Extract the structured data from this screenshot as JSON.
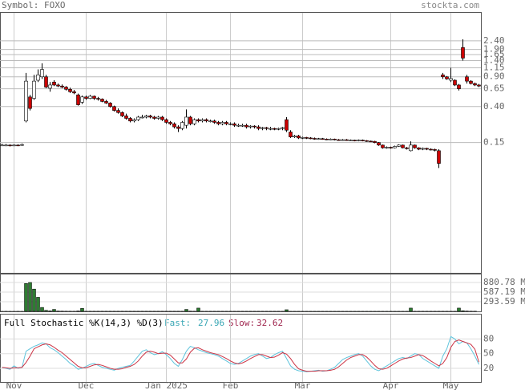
{
  "header": {
    "symbol": "Symbol: FOXO",
    "site": "stockta.com"
  },
  "chart_data": [
    {
      "type": "candlestick",
      "log_scale": true,
      "grid": true,
      "up_color": "#ffffff",
      "down_color": "#cc0000",
      "ylim": [
        0.0043,
        5.15
      ],
      "yticks": [
        {
          "value": 2.4,
          "label": "2.40"
        },
        {
          "value": 1.9,
          "label": "1.90"
        },
        {
          "value": 1.65,
          "label": "1.65"
        },
        {
          "value": 1.4,
          "label": "1.40"
        },
        {
          "value": 1.15,
          "label": "1.15"
        },
        {
          "value": 0.9,
          "label": "0.90"
        },
        {
          "value": 0.65,
          "label": "0.65"
        },
        {
          "value": 0.4,
          "label": "0.40"
        },
        {
          "value": 0.15,
          "label": "0.15"
        }
      ],
      "categories": [
        null,
        null,
        null,
        "Nov",
        null,
        null,
        null,
        null,
        null,
        null,
        null,
        null,
        null,
        null,
        null,
        null,
        null,
        null,
        null,
        null,
        null,
        "Dec",
        null,
        null,
        null,
        null,
        null,
        null,
        null,
        null,
        null,
        null,
        null,
        null,
        null,
        null,
        null,
        null,
        null,
        null,
        null,
        "Jan 2025",
        null,
        null,
        null,
        null,
        null,
        null,
        null,
        null,
        null,
        null,
        null,
        null,
        null,
        null,
        null,
        "Feb",
        null,
        null,
        null,
        null,
        null,
        null,
        null,
        null,
        null,
        null,
        null,
        null,
        null,
        null,
        null,
        null,
        null,
        "Mar",
        null,
        null,
        null,
        null,
        null,
        null,
        null,
        null,
        null,
        null,
        null,
        null,
        null,
        null,
        null,
        null,
        null,
        null,
        null,
        null,
        null,
        "Apr",
        null,
        null,
        null,
        null,
        null,
        null,
        null,
        null,
        null,
        null,
        null,
        null,
        null,
        null,
        "May",
        null,
        null,
        null,
        null,
        null,
        null,
        null
      ],
      "open": [
        0.14,
        0.14,
        0.14,
        0.138,
        0.14,
        0.139,
        0.27,
        0.52,
        0.5,
        0.82,
        0.9,
        0.9,
        0.66,
        0.78,
        0.72,
        0.7,
        0.68,
        0.64,
        0.6,
        0.55,
        0.45,
        0.52,
        0.5,
        0.53,
        0.5,
        0.49,
        0.46,
        0.44,
        0.4,
        0.36,
        0.34,
        0.31,
        0.29,
        0.27,
        0.28,
        0.3,
        0.3,
        0.31,
        0.3,
        0.29,
        0.3,
        0.28,
        0.26,
        0.25,
        0.23,
        0.22,
        0.24,
        0.3,
        0.25,
        0.28,
        0.27,
        0.28,
        0.27,
        0.27,
        0.26,
        0.25,
        0.26,
        0.25,
        0.25,
        0.24,
        0.24,
        0.24,
        0.23,
        0.235,
        0.23,
        0.22,
        0.225,
        0.22,
        0.22,
        0.215,
        0.22,
        0.28,
        0.2,
        0.175,
        0.18,
        0.17,
        0.172,
        0.17,
        0.168,
        0.165,
        0.167,
        0.165,
        0.163,
        0.165,
        0.162,
        0.16,
        0.162,
        0.16,
        0.16,
        0.158,
        0.16,
        0.158,
        0.156,
        0.155,
        0.15,
        0.14,
        0.13,
        0.132,
        0.13,
        0.135,
        0.14,
        0.13,
        0.12,
        0.14,
        0.13,
        0.125,
        0.128,
        0.125,
        0.124,
        0.12,
        0.95,
        0.9,
        0.82,
        0.82,
        0.72,
        2.0,
        0.9,
        0.8,
        0.75,
        0.72
      ],
      "high": [
        0.145,
        0.144,
        0.143,
        0.143,
        0.143,
        0.146,
        1.0,
        0.55,
        0.95,
        1.1,
        1.3,
        0.95,
        0.78,
        0.82,
        0.75,
        0.73,
        0.7,
        0.67,
        0.63,
        0.57,
        0.54,
        0.54,
        0.55,
        0.54,
        0.52,
        0.5,
        0.48,
        0.45,
        0.41,
        0.38,
        0.35,
        0.33,
        0.3,
        0.29,
        0.31,
        0.32,
        0.32,
        0.32,
        0.31,
        0.31,
        0.31,
        0.29,
        0.27,
        0.26,
        0.24,
        0.27,
        0.37,
        0.31,
        0.29,
        0.29,
        0.29,
        0.29,
        0.28,
        0.28,
        0.27,
        0.27,
        0.27,
        0.26,
        0.26,
        0.25,
        0.25,
        0.25,
        0.24,
        0.24,
        0.24,
        0.23,
        0.23,
        0.23,
        0.225,
        0.225,
        0.23,
        0.3,
        0.21,
        0.185,
        0.185,
        0.176,
        0.175,
        0.174,
        0.172,
        0.17,
        0.17,
        0.168,
        0.168,
        0.167,
        0.165,
        0.165,
        0.165,
        0.163,
        0.162,
        0.163,
        0.163,
        0.16,
        0.158,
        0.157,
        0.152,
        0.142,
        0.135,
        0.134,
        0.138,
        0.143,
        0.142,
        0.133,
        0.155,
        0.142,
        0.132,
        0.131,
        0.13,
        0.128,
        0.127,
        0.125,
        1.0,
        0.92,
        1.15,
        0.84,
        0.74,
        2.5,
        0.95,
        0.82,
        0.77,
        0.74
      ],
      "low": [
        0.137,
        0.136,
        0.135,
        0.136,
        0.136,
        0.137,
        0.26,
        0.36,
        0.48,
        0.78,
        0.85,
        0.66,
        0.6,
        0.7,
        0.68,
        0.66,
        0.62,
        0.58,
        0.56,
        0.41,
        0.43,
        0.48,
        0.49,
        0.48,
        0.47,
        0.45,
        0.43,
        0.39,
        0.35,
        0.33,
        0.3,
        0.28,
        0.26,
        0.26,
        0.27,
        0.29,
        0.29,
        0.29,
        0.28,
        0.28,
        0.27,
        0.25,
        0.24,
        0.22,
        0.2,
        0.21,
        0.22,
        0.24,
        0.24,
        0.26,
        0.26,
        0.26,
        0.26,
        0.25,
        0.24,
        0.24,
        0.24,
        0.24,
        0.23,
        0.23,
        0.23,
        0.22,
        0.22,
        0.22,
        0.21,
        0.21,
        0.21,
        0.21,
        0.21,
        0.21,
        0.21,
        0.2,
        0.17,
        0.17,
        0.165,
        0.165,
        0.165,
        0.164,
        0.162,
        0.162,
        0.162,
        0.16,
        0.16,
        0.159,
        0.157,
        0.157,
        0.157,
        0.156,
        0.155,
        0.155,
        0.155,
        0.153,
        0.152,
        0.147,
        0.137,
        0.127,
        0.127,
        0.127,
        0.128,
        0.133,
        0.128,
        0.124,
        0.118,
        0.127,
        0.122,
        0.122,
        0.122,
        0.121,
        0.118,
        0.075,
        0.85,
        0.83,
        0.78,
        0.7,
        0.62,
        1.4,
        0.75,
        0.73,
        0.7,
        0.68
      ],
      "close": [
        0.14,
        0.14,
        0.138,
        0.14,
        0.139,
        0.142,
        0.8,
        0.38,
        0.8,
        0.95,
        1.1,
        0.68,
        0.72,
        0.72,
        0.7,
        0.68,
        0.64,
        0.6,
        0.58,
        0.42,
        0.52,
        0.5,
        0.53,
        0.5,
        0.49,
        0.46,
        0.44,
        0.4,
        0.36,
        0.34,
        0.31,
        0.29,
        0.27,
        0.28,
        0.3,
        0.3,
        0.31,
        0.3,
        0.29,
        0.3,
        0.28,
        0.26,
        0.25,
        0.23,
        0.22,
        0.26,
        0.3,
        0.25,
        0.28,
        0.27,
        0.28,
        0.27,
        0.27,
        0.26,
        0.25,
        0.26,
        0.25,
        0.25,
        0.24,
        0.24,
        0.24,
        0.23,
        0.235,
        0.23,
        0.22,
        0.225,
        0.22,
        0.22,
        0.215,
        0.22,
        0.225,
        0.21,
        0.175,
        0.18,
        0.17,
        0.172,
        0.17,
        0.168,
        0.165,
        0.167,
        0.165,
        0.163,
        0.165,
        0.162,
        0.16,
        0.162,
        0.16,
        0.16,
        0.158,
        0.16,
        0.158,
        0.156,
        0.155,
        0.15,
        0.14,
        0.13,
        0.132,
        0.13,
        0.135,
        0.14,
        0.13,
        0.127,
        0.14,
        0.13,
        0.125,
        0.128,
        0.125,
        0.124,
        0.122,
        0.085,
        0.9,
        0.85,
        0.86,
        0.72,
        0.65,
        1.5,
        0.8,
        0.75,
        0.72,
        0.7
      ]
    },
    {
      "type": "bar",
      "color": "#2e7d32",
      "ylim": [
        0,
        1125
      ],
      "yticks": [
        {
          "value": 880.78,
          "label": "880.78 M"
        },
        {
          "value": 587.19,
          "label": "587.19 M"
        },
        {
          "value": 293.59,
          "label": "293.59 M"
        }
      ],
      "values": [
        2,
        3,
        2,
        2,
        3,
        2,
        850,
        880,
        680,
        430,
        120,
        30,
        15,
        60,
        10,
        8,
        6,
        5,
        4,
        12,
        90,
        5,
        5,
        5,
        5,
        5,
        5,
        5,
        5,
        5,
        5,
        5,
        5,
        5,
        5,
        5,
        5,
        5,
        5,
        5,
        5,
        5,
        5,
        5,
        5,
        5,
        60,
        8,
        6,
        100,
        4,
        4,
        4,
        4,
        4,
        4,
        4,
        4,
        4,
        4,
        4,
        4,
        4,
        4,
        4,
        4,
        4,
        4,
        4,
        4,
        4,
        50,
        3,
        3,
        3,
        3,
        3,
        3,
        3,
        3,
        3,
        3,
        3,
        3,
        3,
        3,
        3,
        3,
        3,
        3,
        3,
        3,
        3,
        3,
        3,
        3,
        3,
        3,
        3,
        3,
        3,
        3,
        100,
        4,
        4,
        4,
        4,
        4,
        4,
        4,
        4,
        4,
        4,
        4,
        100,
        20,
        10,
        6,
        5
      ]
    },
    {
      "type": "line",
      "title": "Full Stochastic %K(14,3) %D(3)",
      "fast": {
        "label": "Fast:",
        "value": 27.96
      },
      "slow": {
        "label": "Slow:",
        "value": 32.62
      },
      "ylim": [
        -8,
        130
      ],
      "yticks": [
        80,
        50,
        20
      ],
      "series": [
        {
          "color": "#5fc4dc",
          "values": [
            22,
            20,
            18,
            25,
            20,
            22,
            55,
            60,
            65,
            68,
            72,
            70,
            62,
            58,
            52,
            45,
            38,
            30,
            25,
            18,
            20,
            24,
            28,
            30,
            26,
            22,
            20,
            18,
            16,
            20,
            22,
            24,
            26,
            35,
            45,
            55,
            58,
            52,
            48,
            50,
            54,
            48,
            40,
            30,
            24,
            38,
            55,
            65,
            62,
            58,
            55,
            52,
            50,
            48,
            45,
            40,
            35,
            30,
            28,
            30,
            35,
            40,
            45,
            48,
            50,
            45,
            40,
            42,
            48,
            52,
            55,
            40,
            25,
            18,
            15,
            14,
            13,
            14,
            15,
            16,
            14,
            15,
            18,
            22,
            30,
            38,
            42,
            45,
            48,
            50,
            45,
            35,
            25,
            18,
            15,
            20,
            25,
            30,
            35,
            40,
            42,
            40,
            45,
            50,
            48,
            40,
            35,
            30,
            25,
            20,
            45,
            60,
            85,
            80,
            70,
            75,
            72,
            60,
            45,
            27.96
          ]
        },
        {
          "color": "#cc3344",
          "values": [
            22,
            21,
            20,
            21,
            21,
            22,
            32,
            45,
            60,
            64,
            68,
            70,
            68,
            63,
            57,
            52,
            45,
            38,
            31,
            24,
            21,
            21,
            24,
            27,
            28,
            26,
            23,
            20,
            18,
            18,
            19,
            22,
            24,
            28,
            35,
            45,
            53,
            55,
            53,
            50,
            51,
            51,
            47,
            39,
            31,
            31,
            39,
            53,
            61,
            62,
            58,
            55,
            52,
            50,
            48,
            44,
            40,
            35,
            31,
            29,
            31,
            35,
            40,
            44,
            48,
            48,
            45,
            42,
            43,
            47,
            52,
            49,
            40,
            28,
            19,
            16,
            14,
            14,
            14,
            15,
            15,
            15,
            16,
            18,
            23,
            30,
            37,
            42,
            45,
            48,
            48,
            43,
            35,
            26,
            19,
            18,
            20,
            25,
            30,
            35,
            39,
            41,
            42,
            45,
            48,
            46,
            41,
            35,
            30,
            25,
            30,
            42,
            63,
            75,
            78,
            75,
            72,
            69,
            59,
            32.62
          ]
        }
      ]
    }
  ]
}
